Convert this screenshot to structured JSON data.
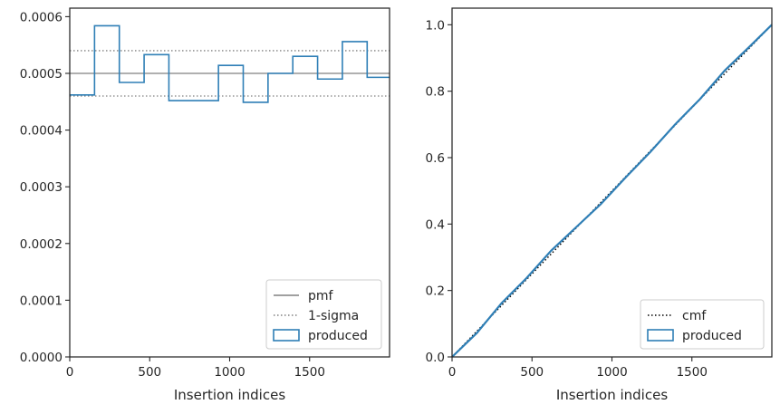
{
  "chart_data": [
    {
      "type": "step",
      "xlabel": "Insertion indices",
      "ylabel": "",
      "xlim": [
        0,
        2000
      ],
      "ylim": [
        0,
        0.000615
      ],
      "xticks": [
        0,
        500,
        1000,
        1500
      ],
      "yticks": [
        0,
        0.0001,
        0.0002,
        0.0003,
        0.0004,
        0.0005,
        0.0006
      ],
      "ytick_labels": [
        "0.0000",
        "0.0001",
        "0.0002",
        "0.0003",
        "0.0004",
        "0.0005",
        "0.0006"
      ],
      "legend_position": "lower-right",
      "series": [
        {
          "name": "pmf",
          "kind": "hline",
          "y": 0.0005,
          "color": "#808080",
          "style": "solid"
        },
        {
          "name": "1-sigma",
          "kind": "hlines",
          "y": [
            0.00046,
            0.00054
          ],
          "color": "#808080",
          "style": "dotted"
        },
        {
          "name": "produced",
          "kind": "step-hist",
          "color": "#2f7fb6",
          "bin_edges": [
            0,
            155,
            310,
            465,
            620,
            775,
            930,
            1085,
            1240,
            1395,
            1550,
            1705,
            1860,
            2000
          ],
          "values": [
            0.000462,
            0.000584,
            0.000484,
            0.000533,
            0.000452,
            0.000452,
            0.000514,
            0.000449,
            0.0005,
            0.00053,
            0.00049,
            0.000556,
            0.000493
          ]
        }
      ]
    },
    {
      "type": "line",
      "xlabel": "Insertion indices",
      "ylabel": "",
      "xlim": [
        0,
        2000
      ],
      "ylim": [
        0,
        1.05
      ],
      "xticks": [
        0,
        500,
        1000,
        1500
      ],
      "yticks": [
        0,
        0.2,
        0.4,
        0.6,
        0.8,
        1.0
      ],
      "ytick_labels": [
        "0.0",
        "0.2",
        "0.4",
        "0.6",
        "0.8",
        "1.0"
      ],
      "legend_position": "lower-right",
      "series": [
        {
          "name": "cmf",
          "kind": "line",
          "x": [
            0,
            2000
          ],
          "y": [
            0,
            1.0
          ],
          "color": "#000000",
          "style": "dotted"
        },
        {
          "name": "produced",
          "kind": "line",
          "color": "#2f7fb6",
          "x": [
            0,
            155,
            310,
            465,
            620,
            775,
            930,
            1085,
            1240,
            1395,
            1550,
            1705,
            1860,
            2000
          ],
          "y": [
            0,
            0.072,
            0.162,
            0.237,
            0.32,
            0.39,
            0.46,
            0.54,
            0.617,
            0.7,
            0.776,
            0.862,
            0.934,
            1.0
          ]
        }
      ]
    }
  ]
}
